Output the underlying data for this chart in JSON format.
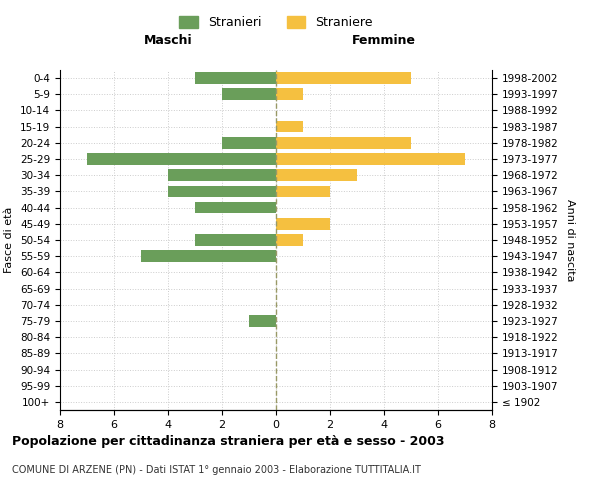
{
  "age_groups": [
    "100+",
    "95-99",
    "90-94",
    "85-89",
    "80-84",
    "75-79",
    "70-74",
    "65-69",
    "60-64",
    "55-59",
    "50-54",
    "45-49",
    "40-44",
    "35-39",
    "30-34",
    "25-29",
    "20-24",
    "15-19",
    "10-14",
    "5-9",
    "0-4"
  ],
  "birth_years": [
    "≤ 1902",
    "1903-1907",
    "1908-1912",
    "1913-1917",
    "1918-1922",
    "1923-1927",
    "1928-1932",
    "1933-1937",
    "1938-1942",
    "1943-1947",
    "1948-1952",
    "1953-1957",
    "1958-1962",
    "1963-1967",
    "1968-1972",
    "1973-1977",
    "1978-1982",
    "1983-1987",
    "1988-1992",
    "1993-1997",
    "1998-2002"
  ],
  "males": [
    0,
    0,
    0,
    0,
    0,
    1,
    0,
    0,
    0,
    5,
    3,
    0,
    3,
    4,
    4,
    7,
    2,
    0,
    0,
    2,
    3
  ],
  "females": [
    0,
    0,
    0,
    0,
    0,
    0,
    0,
    0,
    0,
    0,
    1,
    2,
    0,
    2,
    3,
    7,
    5,
    1,
    0,
    1,
    5
  ],
  "male_color": "#6a9e5a",
  "female_color": "#f5c040",
  "title": "Popolazione per cittadinanza straniera per età e sesso - 2003",
  "subtitle": "COMUNE DI ARZENE (PN) - Dati ISTAT 1° gennaio 2003 - Elaborazione TUTTITALIA.IT",
  "ylabel_left": "Fasce di età",
  "ylabel_right": "Anni di nascita",
  "xlabel_maschi": "Maschi",
  "xlabel_femmine": "Femmine",
  "legend_male": "Stranieri",
  "legend_female": "Straniere",
  "xlim": 8,
  "background_color": "#ffffff",
  "grid_color": "#cccccc"
}
